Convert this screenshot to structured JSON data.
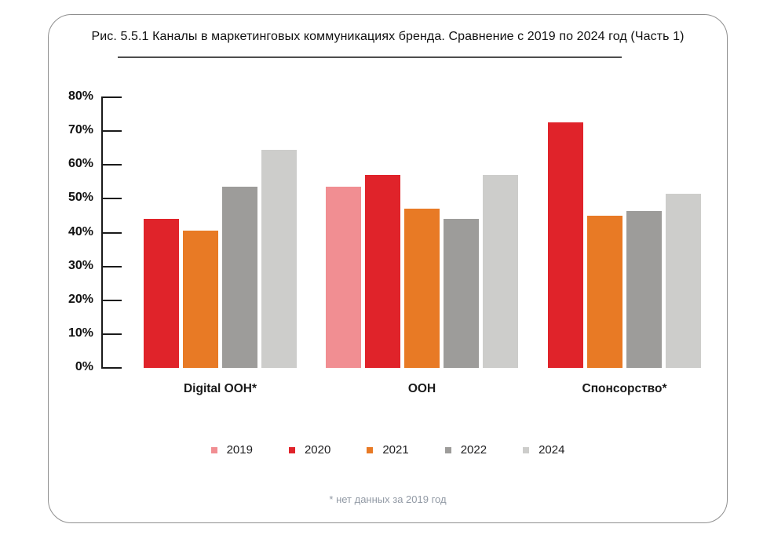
{
  "figure": {
    "title": "Рис. 5.5.1 Каналы в маркетинговых коммуникациях бренда. Сравнение с 2019 по 2024 год (Часть 1)",
    "footnote": "* нет данных за 2019 год"
  },
  "chart_data": {
    "type": "bar",
    "title": "Рис. 5.5.1 Каналы в маркетинговых коммуникациях бренда. Сравнение с 2019 по 2024 год (Часть 1)",
    "ylim": [
      0,
      80
    ],
    "yticks": [
      "80%",
      "70%",
      "60%",
      "50%",
      "40%",
      "30%",
      "20%",
      "10%",
      "0%"
    ],
    "grid": false,
    "legend_position": "bottom",
    "series_years": [
      "2019",
      "2020",
      "2021",
      "2022",
      "2024"
    ],
    "legend": [
      {
        "label": "2019",
        "color": "#F18E92"
      },
      {
        "label": "2020",
        "color": "#E0232A"
      },
      {
        "label": "2021",
        "color": "#E87A25"
      },
      {
        "label": "2022",
        "color": "#9D9C9A"
      },
      {
        "label": "2024",
        "color": "#CDCDCB"
      }
    ],
    "groups": [
      {
        "label": "Digital OOH*",
        "values": {
          "2019": null,
          "2020": 44,
          "2021": 40.5,
          "2022": 53.5,
          "2024": 64.5
        }
      },
      {
        "label": "OOH",
        "values": {
          "2019": 53.5,
          "2020": 57,
          "2021": 47,
          "2022": 44,
          "2024": 57
        }
      },
      {
        "label": "Спонсорство*",
        "values": {
          "2019": null,
          "2020": 72.5,
          "2021": 45,
          "2022": 46.5,
          "2024": 51.5
        }
      }
    ],
    "footnote": "* нет данных за 2019 год"
  }
}
